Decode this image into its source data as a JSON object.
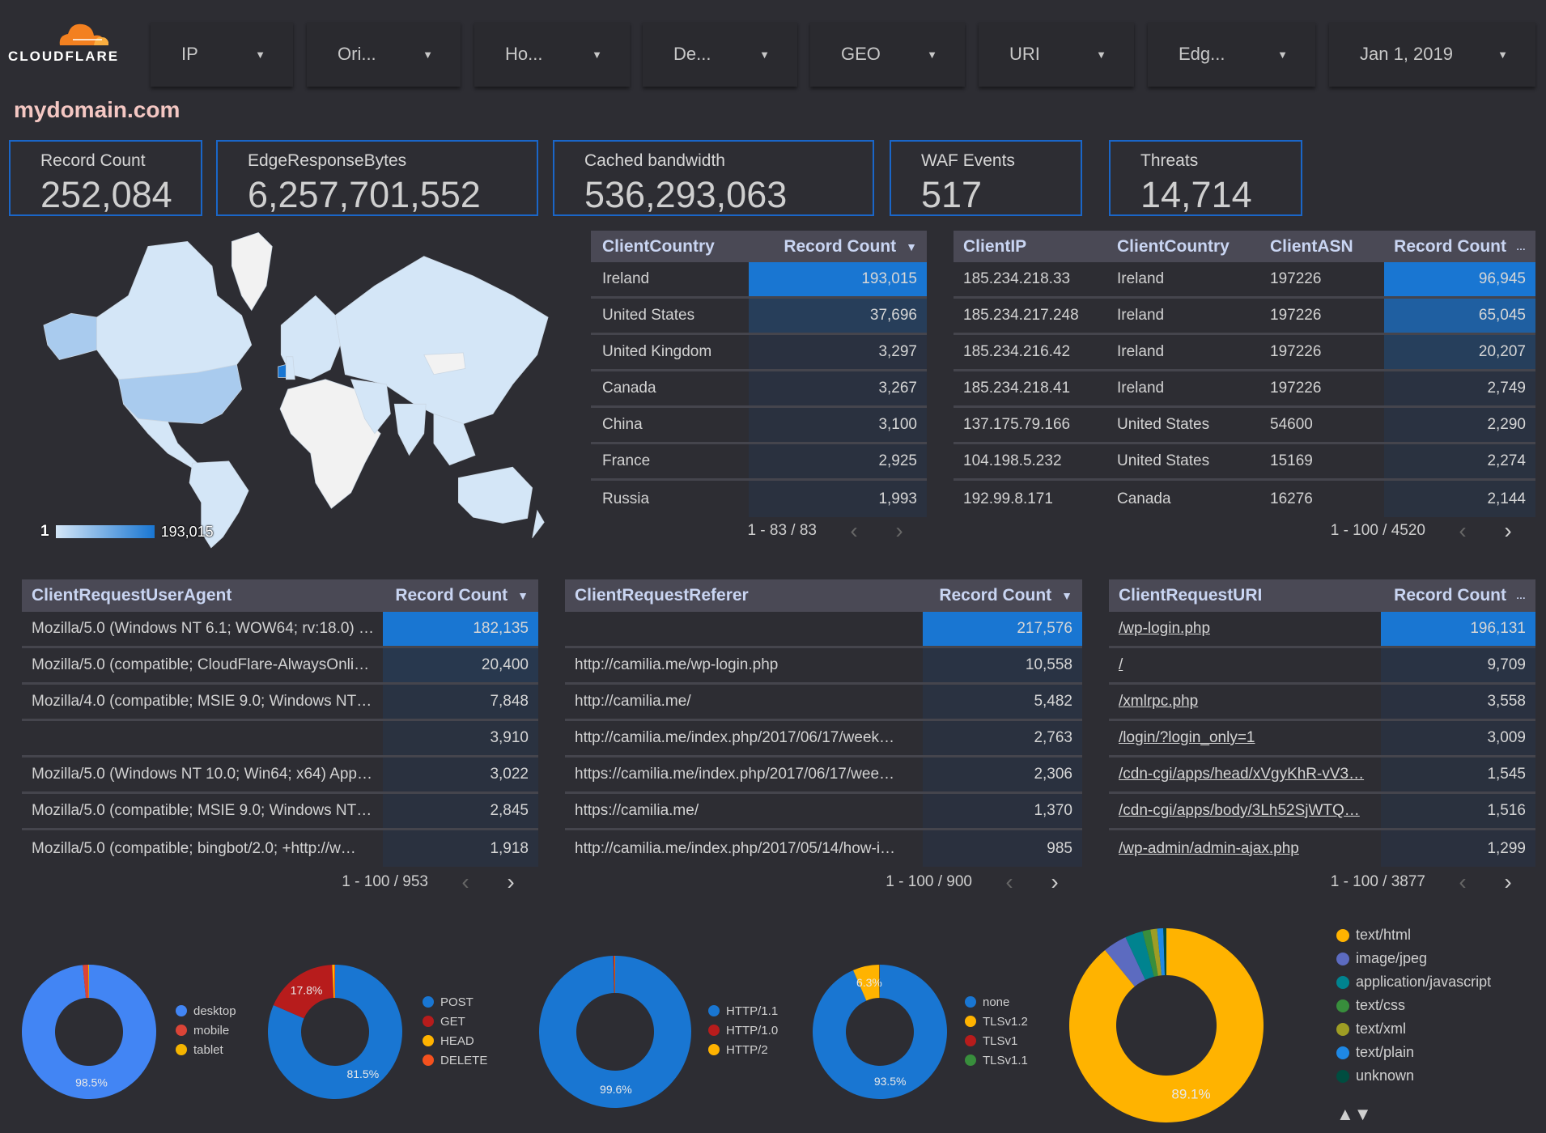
{
  "logo": {
    "text": "CLOUDFLARE",
    "colors": [
      "#f38020",
      "#faae40"
    ]
  },
  "filters": [
    {
      "label": "IP"
    },
    {
      "label": "Ori..."
    },
    {
      "label": "Ho..."
    },
    {
      "label": "De..."
    },
    {
      "label": "GEO"
    },
    {
      "label": "URI"
    },
    {
      "label": "Edg..."
    },
    {
      "label": "Jan 1, 2019"
    }
  ],
  "domain_title": "mydomain.com",
  "kpis": [
    {
      "label": "Record Count",
      "value": "252,084"
    },
    {
      "label": "EdgeResponseBytes",
      "value": "6,257,701,552"
    },
    {
      "label": "Cached bandwidth",
      "value": "536,293,063"
    },
    {
      "label": "WAF Events",
      "value": "517"
    },
    {
      "label": "Threats",
      "value": "14,714"
    }
  ],
  "map": {
    "legend_min": "1",
    "legend_max": "193,015",
    "colors": {
      "low": "#d4e6f7",
      "high": "#1976d2",
      "none": "#f2f2f2"
    }
  },
  "tables": [
    {
      "id": "country",
      "headers": [
        "ClientCountry",
        "Record Count"
      ],
      "sort_icon": "▼",
      "rows": [
        [
          "Ireland",
          "193,015"
        ],
        [
          "United States",
          "37,696"
        ],
        [
          "United Kingdom",
          "3,297"
        ],
        [
          "Canada",
          "3,267"
        ],
        [
          "China",
          "3,100"
        ],
        [
          "France",
          "2,925"
        ],
        [
          "Russia",
          "1,993"
        ]
      ],
      "pagination": "1 - 83 / 83"
    },
    {
      "id": "ip",
      "headers": [
        "ClientIP",
        "ClientCountry",
        "ClientASN",
        "Record Count"
      ],
      "sort_icon": "…",
      "rows": [
        [
          "185.234.218.33",
          "Ireland",
          "197226",
          "96,945"
        ],
        [
          "185.234.217.248",
          "Ireland",
          "197226",
          "65,045"
        ],
        [
          "185.234.216.42",
          "Ireland",
          "197226",
          "20,207"
        ],
        [
          "185.234.218.41",
          "Ireland",
          "197226",
          "2,749"
        ],
        [
          "137.175.79.166",
          "United States",
          "54600",
          "2,290"
        ],
        [
          "104.198.5.232",
          "United States",
          "15169",
          "2,274"
        ],
        [
          "192.99.8.171",
          "Canada",
          "16276",
          "2,144"
        ]
      ],
      "pagination": "1 - 100 / 4520"
    },
    {
      "id": "useragent",
      "headers": [
        "ClientRequestUserAgent",
        "Record Count"
      ],
      "sort_icon": "▼",
      "rows": [
        [
          "Mozilla/5.0 (Windows NT 6.1; WOW64; rv:18.0) …",
          "182,135"
        ],
        [
          "Mozilla/5.0 (compatible; CloudFlare-AlwaysOnli…",
          "20,400"
        ],
        [
          "Mozilla/4.0 (compatible; MSIE 9.0; Windows NT…",
          "7,848"
        ],
        [
          "",
          "3,910"
        ],
        [
          "Mozilla/5.0 (Windows NT 10.0; Win64; x64) App…",
          "3,022"
        ],
        [
          "Mozilla/5.0 (compatible; MSIE 9.0; Windows NT…",
          "2,845"
        ],
        [
          "Mozilla/5.0 (compatible; bingbot/2.0; +http://w…",
          "1,918"
        ]
      ],
      "pagination": "1 - 100 / 953"
    },
    {
      "id": "referer",
      "headers": [
        "ClientRequestReferer",
        "Record Count"
      ],
      "sort_icon": "▼",
      "rows": [
        [
          "",
          "217,576"
        ],
        [
          "http://camilia.me/wp-login.php",
          "10,558"
        ],
        [
          "http://camilia.me/",
          "5,482"
        ],
        [
          "http://camilia.me/index.php/2017/06/17/week…",
          "2,763"
        ],
        [
          "https://camilia.me/index.php/2017/06/17/wee…",
          "2,306"
        ],
        [
          "https://camilia.me/",
          "1,370"
        ],
        [
          "http://camilia.me/index.php/2017/05/14/how-i…",
          "985"
        ]
      ],
      "pagination": "1 - 100 / 900"
    },
    {
      "id": "uri",
      "headers": [
        "ClientRequestURI",
        "Record Count"
      ],
      "sort_icon": "…",
      "rows": [
        [
          "/wp-login.php",
          "196,131"
        ],
        [
          "/",
          "9,709"
        ],
        [
          "/xmlrpc.php",
          "3,558"
        ],
        [
          "/login/?login_only=1",
          "3,009"
        ],
        [
          "/cdn-cgi/apps/head/xVgyKhR-vV3…",
          "1,545"
        ],
        [
          "/cdn-cgi/apps/body/3Lh52SjWTQ…",
          "1,516"
        ],
        [
          "/wp-admin/admin-ajax.php",
          "1,299"
        ]
      ],
      "pagination": "1 - 100 / 3877"
    }
  ],
  "bar_colors": {
    "max": "#1976d2",
    "min": "#2a303d"
  },
  "chart_data": [
    {
      "type": "pie",
      "donut": true,
      "labels": [
        "desktop",
        "mobile",
        "tablet"
      ],
      "values": [
        98.5,
        1.3,
        0.2
      ],
      "colors": [
        "#4285f4",
        "#db4437",
        "#f4b400"
      ]
    },
    {
      "type": "pie",
      "donut": true,
      "labels": [
        "POST",
        "GET",
        "HEAD",
        "DELETE"
      ],
      "values": [
        81.5,
        17.8,
        0.5,
        0.2
      ],
      "colors": [
        "#1976d2",
        "#b71c1c",
        "#ffb300",
        "#f4511e"
      ]
    },
    {
      "type": "pie",
      "donut": true,
      "labels": [
        "HTTP/1.1",
        "HTTP/1.0",
        "HTTP/2"
      ],
      "values": [
        99.6,
        0.3,
        0.1
      ],
      "colors": [
        "#1976d2",
        "#b71c1c",
        "#ffb300"
      ]
    },
    {
      "type": "pie",
      "donut": true,
      "labels": [
        "none",
        "TLSv1.2",
        "TLSv1",
        "TLSv1.1"
      ],
      "values": [
        93.5,
        6.3,
        0.1,
        0.1
      ],
      "colors": [
        "#1976d2",
        "#ffb300",
        "#b71c1c",
        "#388e3c"
      ]
    },
    {
      "type": "pie",
      "donut": true,
      "labels": [
        "text/html",
        "image/jpeg",
        "application/javascript",
        "text/css",
        "text/xml",
        "text/plain",
        "unknown"
      ],
      "values": [
        87.6,
        3.9,
        2.9,
        1.3,
        1.1,
        1.0,
        0.5
      ],
      "colors": [
        "#ffb300",
        "#5c6bc0",
        "#00838f",
        "#388e3c",
        "#9e9d24",
        "#1e88e5",
        "#004d40"
      ],
      "legend_paging": "▲▼"
    }
  ]
}
